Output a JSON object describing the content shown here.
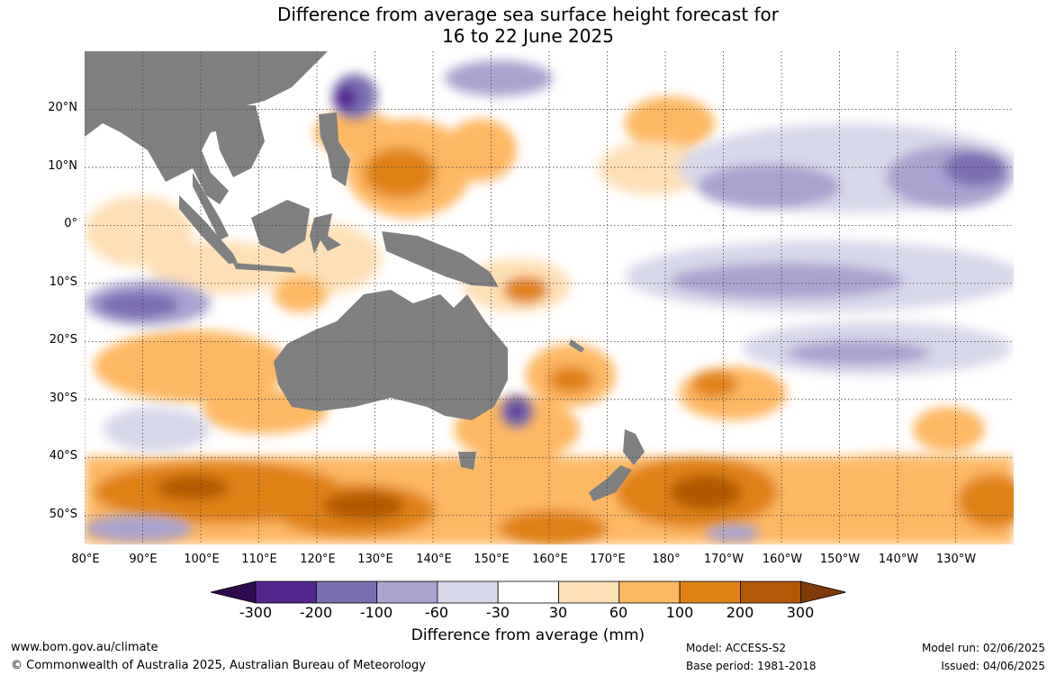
{
  "title_line1": "Difference from average sea surface height forecast for",
  "title_line2": "16 to 22 June 2025",
  "map": {
    "lat_labels": [
      "20°N",
      "10°N",
      "0°",
      "10°S",
      "20°S",
      "30°S",
      "40°S",
      "50°S"
    ],
    "lon_labels": [
      "80°E",
      "90°E",
      "100°E",
      "110°E",
      "120°E",
      "130°E",
      "140°E",
      "150°E",
      "160°E",
      "170°E",
      "180°",
      "170°W",
      "160°W",
      "150°W",
      "140°W",
      "130°W"
    ],
    "lat_range": [
      -55,
      30
    ],
    "lon_range": [
      80,
      240
    ],
    "land_color": "#808080",
    "gridlines": true
  },
  "colorbar": {
    "ticks": [
      "-300",
      "-200",
      "-100",
      "-60",
      "-30",
      "30",
      "60",
      "100",
      "200",
      "300"
    ],
    "colors": [
      "#2d0b4e",
      "#54278f",
      "#7b6eb0",
      "#aaa3d0",
      "#d8d8eb",
      "#ffffff",
      "#fee0b6",
      "#fdb863",
      "#e08214",
      "#b35806",
      "#7f3b08"
    ],
    "label": "Difference from average (mm)"
  },
  "footer": {
    "website": "www.bom.gov.au/climate",
    "copyright": "© Commonwealth of Australia 2025, Australian Bureau of Meteorology",
    "model": "Model: ACCESS-S2",
    "base_period": "Base period: 1981-2018",
    "model_run": "Model run: 02/06/2025",
    "issued": "Issued: 04/06/2025"
  }
}
